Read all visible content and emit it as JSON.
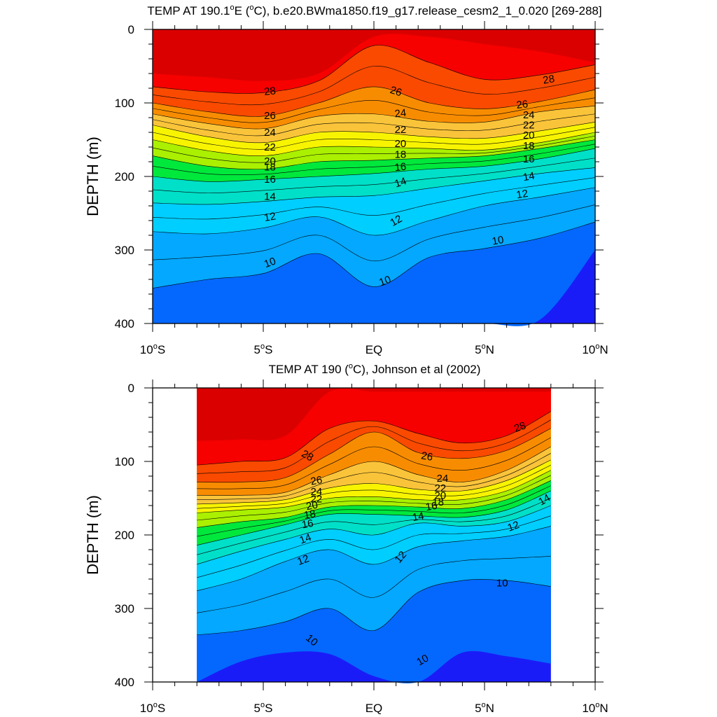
{
  "chart_data": [
    {
      "type": "contour",
      "title": "TEMP AT 190.1°E (°C), b.e20.BWma1850.f19_g17.release_cesm2_1_0.020 [269-288]",
      "title_parts": {
        "pre": "TEMP AT 190.1",
        "sup1": "o",
        "mid": "E (",
        "sup2": "o",
        "post": "C), b.e20.BWma1850.f19_g17.release_cesm2_1_0.020 [269-288]"
      },
      "xlabel": "",
      "ylabel": "DEPTH (m)",
      "xlim": [
        -10,
        10
      ],
      "ylim": [
        0,
        400
      ],
      "y_inverted": true,
      "data_x_range": [
        -10,
        10
      ],
      "x_ticks": [
        {
          "value": -10,
          "num": "10",
          "hemi": "S"
        },
        {
          "value": -5,
          "num": "5",
          "hemi": "S"
        },
        {
          "value": 0,
          "num": "EQ",
          "hemi": ""
        },
        {
          "value": 5,
          "num": "5",
          "hemi": "N"
        },
        {
          "value": 10,
          "num": "10",
          "hemi": "N"
        }
      ],
      "y_ticks": [
        0,
        100,
        200,
        300,
        400
      ],
      "contour_levels": [
        10,
        11,
        12,
        13,
        14,
        15,
        16,
        17,
        18,
        19,
        20,
        21,
        22,
        23,
        24,
        25,
        26,
        27,
        28,
        29
      ],
      "isotherm_depths": {
        "x": [
          -10,
          -7.5,
          -5,
          -2.5,
          0,
          2.5,
          5,
          7.5,
          10
        ],
        "levels": {
          "29": [
            60,
            65,
            70,
            60,
            10,
            10,
            20,
            30,
            45
          ],
          "28": [
            78,
            85,
            86,
            70,
            22,
            45,
            68,
            62,
            48
          ],
          "26": [
            100,
            112,
            118,
            100,
            78,
            100,
            108,
            98,
            82
          ],
          "24": [
            115,
            128,
            135,
            118,
            115,
            125,
            126,
            112,
            104
          ],
          "22": [
            130,
            146,
            154,
            140,
            140,
            146,
            148,
            138,
            126
          ],
          "20": [
            150,
            165,
            172,
            160,
            160,
            162,
            164,
            154,
            140
          ],
          "18": [
            172,
            186,
            190,
            180,
            178,
            175,
            172,
            162,
            150
          ],
          "16": [
            200,
            207,
            204,
            200,
            196,
            190,
            186,
            176,
            162
          ],
          "14": [
            236,
            238,
            234,
            228,
            226,
            216,
            206,
            196,
            188
          ],
          "12": [
            275,
            278,
            270,
            255,
            280,
            260,
            240,
            228,
            215
          ],
          "10": [
            352,
            340,
            332,
            305,
            350,
            310,
            298,
            284,
            262
          ],
          "9": [
            410,
            410,
            410,
            410,
            410,
            410,
            410,
            395,
            300
          ]
        }
      },
      "contour_labels": [
        {
          "value": "28",
          "x": -4.7,
          "depth": 84,
          "angle": -6
        },
        {
          "value": "26",
          "x": -4.7,
          "depth": 117,
          "angle": 0
        },
        {
          "value": "24",
          "x": -4.7,
          "depth": 140,
          "angle": 0
        },
        {
          "value": "22",
          "x": -4.7,
          "depth": 160,
          "angle": 0
        },
        {
          "value": "20",
          "x": -4.7,
          "depth": 179,
          "angle": 0
        },
        {
          "value": "18",
          "x": -4.7,
          "depth": 187,
          "angle": 0
        },
        {
          "value": "16",
          "x": -4.7,
          "depth": 204,
          "angle": 0
        },
        {
          "value": "14",
          "x": -4.7,
          "depth": 227,
          "angle": 0
        },
        {
          "value": "12",
          "x": -4.7,
          "depth": 255,
          "angle": -10
        },
        {
          "value": "10",
          "x": -4.7,
          "depth": 317,
          "angle": -20
        },
        {
          "value": "26",
          "x": 1.0,
          "depth": 84,
          "angle": 18
        },
        {
          "value": "24",
          "x": 1.2,
          "depth": 114,
          "angle": -6
        },
        {
          "value": "22",
          "x": 1.2,
          "depth": 136,
          "angle": 0
        },
        {
          "value": "20",
          "x": 1.2,
          "depth": 155,
          "angle": 0
        },
        {
          "value": "18",
          "x": 1.2,
          "depth": 170,
          "angle": 0
        },
        {
          "value": "16",
          "x": 1.2,
          "depth": 187,
          "angle": -6
        },
        {
          "value": "14",
          "x": 1.2,
          "depth": 208,
          "angle": -18
        },
        {
          "value": "12",
          "x": 1.0,
          "depth": 260,
          "angle": -30
        },
        {
          "value": "10",
          "x": 0.5,
          "depth": 342,
          "angle": -20
        },
        {
          "value": "28",
          "x": 7.9,
          "depth": 68,
          "angle": -10
        },
        {
          "value": "26",
          "x": 6.7,
          "depth": 102,
          "angle": -6
        },
        {
          "value": "24",
          "x": 7.0,
          "depth": 116,
          "angle": 0
        },
        {
          "value": "22",
          "x": 7.0,
          "depth": 130,
          "angle": 0
        },
        {
          "value": "20",
          "x": 7.0,
          "depth": 144,
          "angle": 0
        },
        {
          "value": "18",
          "x": 7.0,
          "depth": 158,
          "angle": 0
        },
        {
          "value": "16",
          "x": 7.0,
          "depth": 176,
          "angle": 0
        },
        {
          "value": "14",
          "x": 7.0,
          "depth": 200,
          "angle": -10
        },
        {
          "value": "12",
          "x": 6.7,
          "depth": 224,
          "angle": -10
        },
        {
          "value": "10",
          "x": 5.6,
          "depth": 287,
          "angle": -10
        }
      ]
    },
    {
      "type": "contour",
      "title": "TEMP AT 190 (°C), Johnson et al (2002)",
      "title_parts": {
        "pre": "TEMP AT 190 (",
        "sup1": "o",
        "mid": "C), Johnson et al (2002)",
        "sup2": "",
        "post": ""
      },
      "xlabel": "",
      "ylabel": "DEPTH (m)",
      "xlim": [
        -10,
        10
      ],
      "ylim": [
        0,
        400
      ],
      "y_inverted": true,
      "data_x_range": [
        -8,
        8
      ],
      "x_ticks": [
        {
          "value": -10,
          "num": "10",
          "hemi": "S"
        },
        {
          "value": -5,
          "num": "5",
          "hemi": "S"
        },
        {
          "value": 0,
          "num": "EQ",
          "hemi": ""
        },
        {
          "value": 5,
          "num": "5",
          "hemi": "N"
        },
        {
          "value": 10,
          "num": "10",
          "hemi": "N"
        }
      ],
      "y_ticks": [
        0,
        100,
        200,
        300,
        400
      ],
      "contour_levels": [
        10,
        11,
        12,
        13,
        14,
        15,
        16,
        17,
        18,
        19,
        20,
        21,
        22,
        23,
        24,
        25,
        26,
        27,
        28,
        29
      ],
      "isotherm_depths": {
        "x": [
          -8,
          -6,
          -4,
          -2,
          0,
          2,
          4,
          6,
          8
        ],
        "levels": {
          "29": [
            72,
            70,
            65,
            5,
            5,
            5,
            5,
            5,
            5
          ],
          "28": [
            105,
            100,
            95,
            55,
            45,
            62,
            75,
            65,
            32
          ],
          "26": [
            128,
            128,
            122,
            90,
            60,
            88,
            96,
            85,
            55
          ],
          "24": [
            146,
            146,
            142,
            118,
            100,
            118,
            128,
            112,
            80
          ],
          "22": [
            158,
            156,
            152,
            136,
            130,
            138,
            140,
            126,
            98
          ],
          "20": [
            170,
            166,
            162,
            150,
            148,
            152,
            152,
            140,
            112
          ],
          "18": [
            190,
            182,
            176,
            162,
            160,
            162,
            164,
            152,
            126
          ],
          "16": [
            214,
            200,
            186,
            172,
            172,
            174,
            176,
            166,
            140
          ],
          "14": [
            240,
            222,
            206,
            192,
            200,
            184,
            188,
            182,
            160
          ],
          "12": [
            276,
            260,
            236,
            220,
            240,
            216,
            208,
            202,
            188
          ],
          "10": [
            336,
            330,
            318,
            300,
            330,
            278,
            262,
            262,
            270
          ],
          "9": [
            410,
            372,
            360,
            362,
            392,
            410,
            360,
            365,
            375
          ]
        }
      },
      "contour_labels": [
        {
          "value": "28",
          "x": -3.0,
          "depth": 92,
          "angle": 30
        },
        {
          "value": "26",
          "x": -2.6,
          "depth": 126,
          "angle": -10
        },
        {
          "value": "24",
          "x": -2.6,
          "depth": 141,
          "angle": 0
        },
        {
          "value": "22",
          "x": -2.6,
          "depth": 151,
          "angle": 0
        },
        {
          "value": "20",
          "x": -2.8,
          "depth": 160,
          "angle": -10
        },
        {
          "value": "18",
          "x": -2.9,
          "depth": 172,
          "angle": -10
        },
        {
          "value": "16",
          "x": -3.0,
          "depth": 185,
          "angle": -10
        },
        {
          "value": "14",
          "x": -3.1,
          "depth": 205,
          "angle": -20
        },
        {
          "value": "12",
          "x": -3.2,
          "depth": 234,
          "angle": -20
        },
        {
          "value": "10",
          "x": -2.8,
          "depth": 343,
          "angle": 40
        },
        {
          "value": "26",
          "x": 2.4,
          "depth": 93,
          "angle": 10
        },
        {
          "value": "24",
          "x": 3.1,
          "depth": 123,
          "angle": 0
        },
        {
          "value": "22",
          "x": 3.0,
          "depth": 136,
          "angle": 0
        },
        {
          "value": "20",
          "x": 3.0,
          "depth": 146,
          "angle": 0
        },
        {
          "value": "18",
          "x": 2.9,
          "depth": 155,
          "angle": 0
        },
        {
          "value": "16",
          "x": 2.6,
          "depth": 161,
          "angle": -10
        },
        {
          "value": "14",
          "x": 2.0,
          "depth": 175,
          "angle": -10
        },
        {
          "value": "12",
          "x": 1.2,
          "depth": 230,
          "angle": -50
        },
        {
          "value": "10",
          "x": 2.2,
          "depth": 370,
          "angle": -30
        },
        {
          "value": "28",
          "x": 6.6,
          "depth": 53,
          "angle": -20
        },
        {
          "value": "14",
          "x": 7.7,
          "depth": 152,
          "angle": -30
        },
        {
          "value": "12",
          "x": 6.3,
          "depth": 188,
          "angle": -20
        },
        {
          "value": "10",
          "x": 5.8,
          "depth": 265,
          "angle": 0
        }
      ]
    }
  ]
}
